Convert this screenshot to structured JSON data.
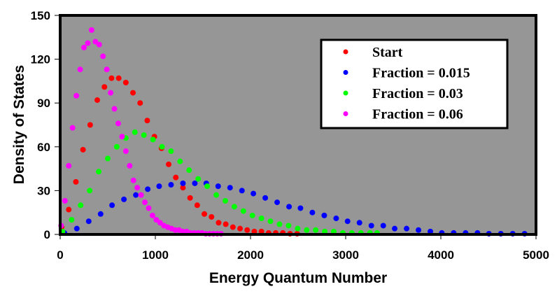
{
  "chart_data": {
    "type": "scatter",
    "title": "",
    "xlabel": "Energy Quantum Number",
    "ylabel": "Density of States",
    "xlim": [
      0,
      5000
    ],
    "ylim": [
      0,
      150
    ],
    "xticks": [
      "0",
      "1000",
      "2000",
      "3000",
      "4000",
      "5000"
    ],
    "xtick_values": [
      0,
      1000,
      2000,
      3000,
      4000,
      5000
    ],
    "yticks": [
      "0",
      "30",
      "60",
      "90",
      "120",
      "150"
    ],
    "ytick_values": [
      0,
      30,
      60,
      90,
      120,
      150
    ],
    "grid": false,
    "plot_background": "#969696",
    "legend_position": "top-right",
    "series": [
      {
        "name": "Start",
        "color": "#ff0000",
        "x": [
          15,
          90,
          165,
          240,
          315,
          390,
          465,
          540,
          615,
          690,
          765,
          840,
          915,
          990,
          1065,
          1140,
          1215,
          1290,
          1365,
          1440,
          1515,
          1590,
          1665,
          1740,
          1815,
          1890,
          1965,
          2040,
          2115,
          2190,
          2265,
          2340,
          2415,
          2490
        ],
        "y": [
          5,
          17,
          36,
          58,
          75,
          92,
          101,
          107,
          107,
          104,
          97,
          90,
          78,
          67,
          59,
          48,
          39,
          32,
          25,
          20,
          14,
          12,
          8,
          7,
          5,
          4,
          3,
          2,
          2,
          1,
          1,
          1,
          0.5,
          0.5
        ]
      },
      {
        "name": "Fraction = 0.015",
        "color": "#0000ff",
        "x": [
          45,
          175,
          300,
          425,
          545,
          670,
          795,
          920,
          1040,
          1165,
          1290,
          1415,
          1535,
          1660,
          1785,
          1910,
          2030,
          2155,
          2280,
          2405,
          2525,
          2650,
          2775,
          2900,
          3020,
          3145,
          3270,
          3395,
          3515,
          3640,
          3765,
          3890,
          4010,
          4135,
          4260,
          4385,
          4505,
          4630,
          4755,
          4880
        ],
        "y": [
          1,
          4,
          9,
          14,
          20,
          24,
          27,
          31,
          33,
          34,
          35,
          35,
          35,
          33,
          32,
          30,
          28,
          25,
          22,
          19,
          18,
          15,
          13,
          11,
          9,
          8,
          6,
          6,
          4,
          4,
          3,
          2,
          1,
          1,
          1,
          1,
          0.5,
          0.5,
          0.5,
          0.5
        ]
      },
      {
        "name": "Fraction = 0.03",
        "color": "#00ff00",
        "x": [
          25,
          120,
          215,
          310,
          405,
          500,
          595,
          690,
          785,
          880,
          975,
          1070,
          1165,
          1260,
          1355,
          1450,
          1545,
          1640,
          1735,
          1830,
          1925,
          2020,
          2115,
          2210,
          2305,
          2400,
          2495,
          2590,
          2685,
          2780,
          2875,
          2970,
          3065,
          3160,
          3255,
          3330
        ],
        "y": [
          2,
          10,
          20,
          30,
          43,
          52,
          60,
          66,
          70,
          68,
          65,
          60,
          57,
          50,
          44,
          38,
          33,
          27,
          23,
          19,
          16,
          13,
          11,
          9,
          7,
          6,
          4,
          3,
          3,
          2,
          2,
          1,
          1,
          1,
          1,
          1
        ]
      },
      {
        "name": "Fraction = 0.06",
        "color": "#ff00ff",
        "x": [
          10,
          50,
          90,
          130,
          170,
          210,
          250,
          290,
          330,
          370,
          410,
          450,
          490,
          530,
          570,
          610,
          650,
          690,
          730,
          770,
          810,
          850,
          890,
          930,
          970,
          1010,
          1050,
          1090,
          1130,
          1170,
          1210,
          1250,
          1290,
          1330,
          1370,
          1410,
          1450,
          1490,
          1530,
          1570,
          1610,
          1650,
          1690
        ],
        "y": [
          6,
          23,
          47,
          73,
          95,
          113,
          128,
          131,
          140,
          132,
          130,
          122,
          113,
          97,
          86,
          76,
          67,
          57,
          47,
          37,
          32,
          27,
          22,
          18,
          13,
          10,
          8,
          6,
          5,
          4,
          3,
          3,
          2,
          2,
          1,
          1,
          1,
          1,
          0.5,
          0.5,
          0.5,
          0.5,
          0.5
        ]
      }
    ]
  }
}
